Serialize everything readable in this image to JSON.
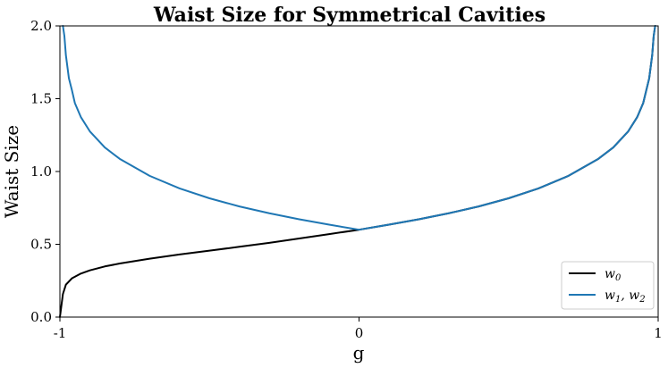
{
  "chart_data": {
    "type": "line",
    "title": "Waist Size for Symmetrical Cavities",
    "xlabel": "g",
    "ylabel": "Waist Size",
    "xlim": [
      -1,
      1
    ],
    "ylim": [
      0,
      2
    ],
    "x_ticks": [
      -1,
      0,
      1
    ],
    "x_tick_labels": [
      "-1",
      "0",
      "1"
    ],
    "y_ticks": [
      0,
      0.5,
      1,
      1.5,
      2
    ],
    "y_tick_labels": [
      "0.0",
      "0.5",
      "1.0",
      "1.5",
      "2.0"
    ],
    "grid": false,
    "legend_position": "bottom-right",
    "series": [
      {
        "name": "w0",
        "legend_main": "w",
        "legend_sub": "0",
        "legend_rest": "",
        "color": "#000000",
        "x": [
          -1.0,
          -0.99,
          -0.98,
          -0.96,
          -0.93,
          -0.9,
          -0.85,
          -0.8,
          -0.7,
          -0.6,
          -0.5,
          -0.4,
          -0.3,
          -0.2,
          -0.1,
          0.0,
          0.1,
          0.2,
          0.3,
          0.4,
          0.5,
          0.6,
          0.7,
          0.8,
          0.85,
          0.9,
          0.93,
          0.95,
          0.97,
          0.98,
          0.985,
          0.99
        ],
        "y": [
          0.0,
          0.158,
          0.223,
          0.266,
          0.299,
          0.321,
          0.348,
          0.368,
          0.401,
          0.43,
          0.456,
          0.483,
          0.51,
          0.54,
          0.57,
          0.6,
          0.635,
          0.672,
          0.713,
          0.76,
          0.816,
          0.884,
          0.97,
          1.087,
          1.165,
          1.276,
          1.374,
          1.47,
          1.64,
          1.798,
          1.93,
          2.0
        ]
      },
      {
        "name": "w1, w2",
        "legend_main": "w",
        "legend_sub": "1",
        "legend_rest": ", w",
        "legend_sub2": "2",
        "color": "#1f77b4",
        "x": [
          -0.99,
          -0.985,
          -0.98,
          -0.97,
          -0.96,
          -0.95,
          -0.93,
          -0.9,
          -0.85,
          -0.8,
          -0.7,
          -0.6,
          -0.5,
          -0.4,
          -0.3,
          -0.2,
          -0.1,
          0.0,
          0.1,
          0.2,
          0.3,
          0.4,
          0.5,
          0.6,
          0.7,
          0.8,
          0.85,
          0.9,
          0.93,
          0.95,
          0.97,
          0.98,
          0.985,
          0.99
        ],
        "y": [
          2.0,
          1.93,
          1.798,
          1.64,
          1.56,
          1.47,
          1.374,
          1.276,
          1.165,
          1.087,
          0.97,
          0.884,
          0.816,
          0.76,
          0.713,
          0.672,
          0.635,
          0.6,
          0.635,
          0.672,
          0.713,
          0.76,
          0.816,
          0.884,
          0.97,
          1.087,
          1.165,
          1.276,
          1.374,
          1.47,
          1.64,
          1.798,
          1.93,
          2.0
        ]
      }
    ]
  }
}
